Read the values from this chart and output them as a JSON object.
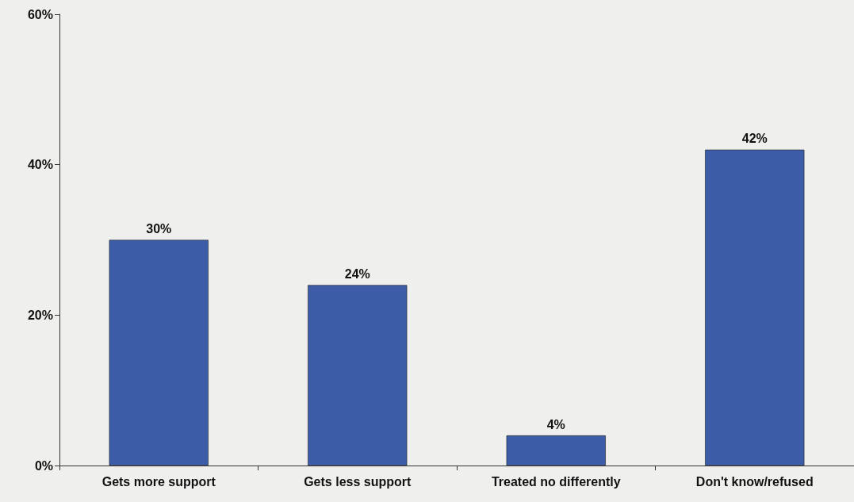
{
  "chart_data": {
    "type": "bar",
    "categories": [
      "Gets more support",
      "Gets less support",
      "Treated no differently",
      "Don't know/refused"
    ],
    "values": [
      30,
      24,
      4,
      42
    ],
    "value_labels": [
      "30%",
      "24%",
      "4%",
      "42%"
    ],
    "color": "#3c5ca8",
    "ylim": [
      0,
      60
    ],
    "yticks": [
      {
        "value": 0,
        "label": "0%"
      },
      {
        "value": 20,
        "label": "20%"
      },
      {
        "value": 40,
        "label": "40%"
      },
      {
        "value": 60,
        "label": "60%"
      }
    ],
    "grid": false
  }
}
